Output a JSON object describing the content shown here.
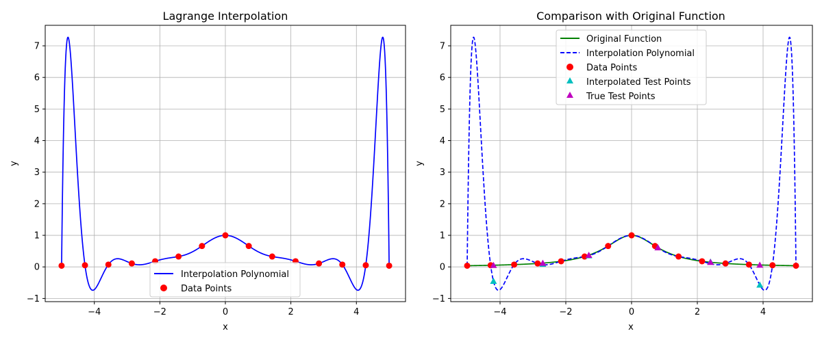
{
  "chart_data": [
    {
      "type": "line",
      "title": "Lagrange Interpolation",
      "xlabel": "x",
      "ylabel": "y",
      "xlim": [
        -5.5,
        5.5
      ],
      "ylim": [
        -1.1,
        7.65
      ],
      "xticks": [
        -4,
        -2,
        0,
        2,
        4
      ],
      "xtick_labels": [
        "−4",
        "−2",
        "0",
        "2",
        "4"
      ],
      "yticks": [
        -1,
        0,
        1,
        2,
        3,
        4,
        5,
        6,
        7
      ],
      "ytick_labels": [
        "−1",
        "0",
        "1",
        "2",
        "3",
        "4",
        "5",
        "6",
        "7"
      ],
      "grid": true,
      "legend_position": "lower center",
      "series": [
        {
          "name": "Interpolation Polynomial",
          "kind": "line",
          "color": "#0000ff",
          "style": "solid",
          "function": "lagrange_interpolant"
        },
        {
          "name": "Data Points",
          "kind": "points",
          "marker": "circle",
          "color": "#ff0000",
          "x": [
            -5.0,
            -4.286,
            -3.571,
            -2.857,
            -2.143,
            -1.429,
            -0.714,
            0.0,
            0.714,
            1.429,
            2.143,
            2.857,
            3.571,
            4.286,
            5.0
          ],
          "y": [
            0.038,
            0.052,
            0.073,
            0.109,
            0.179,
            0.329,
            0.662,
            1.0,
            0.662,
            0.329,
            0.179,
            0.109,
            0.073,
            0.052,
            0.038
          ]
        }
      ]
    },
    {
      "type": "line",
      "title": "Comparison with Original Function",
      "xlabel": "x",
      "ylabel": "y",
      "xlim": [
        -5.5,
        5.5
      ],
      "ylim": [
        -1.1,
        7.65
      ],
      "xticks": [
        -4,
        -2,
        0,
        2,
        4
      ],
      "xtick_labels": [
        "−4",
        "−2",
        "0",
        "2",
        "4"
      ],
      "yticks": [
        -1,
        0,
        1,
        2,
        3,
        4,
        5,
        6,
        7
      ],
      "ytick_labels": [
        "−1",
        "0",
        "1",
        "2",
        "3",
        "4",
        "5",
        "6",
        "7"
      ],
      "grid": true,
      "legend_position": "upper center",
      "series": [
        {
          "name": "Original Function",
          "kind": "line",
          "color": "#008000",
          "style": "solid",
          "function": "1/(1+x^2)"
        },
        {
          "name": "Interpolation Polynomial",
          "kind": "line",
          "color": "#0000ff",
          "style": "dashed",
          "function": "lagrange_interpolant"
        },
        {
          "name": "Data Points",
          "kind": "points",
          "marker": "circle",
          "color": "#ff0000",
          "x": [
            -5.0,
            -4.286,
            -3.571,
            -2.857,
            -2.143,
            -1.429,
            -0.714,
            0.0,
            0.714,
            1.429,
            2.143,
            2.857,
            3.571,
            4.286,
            5.0
          ],
          "y": [
            0.038,
            0.052,
            0.073,
            0.109,
            0.179,
            0.329,
            0.662,
            1.0,
            0.662,
            0.329,
            0.179,
            0.109,
            0.073,
            0.052,
            0.038
          ]
        },
        {
          "name": "Interpolated Test Points",
          "kind": "points",
          "marker": "triangle",
          "color": "#00bfbf",
          "x": [
            -4.2,
            -2.7,
            -1.3,
            0.8,
            2.4,
            3.9
          ],
          "y": [
            -0.45,
            0.09,
            0.36,
            0.61,
            0.16,
            -0.57
          ]
        },
        {
          "name": "True Test Points",
          "kind": "points",
          "marker": "triangle",
          "color": "#bf00bf",
          "x": [
            -4.2,
            -2.7,
            -1.3,
            0.8,
            2.4,
            3.9
          ],
          "y": [
            0.054,
            0.121,
            0.372,
            0.61,
            0.148,
            0.062
          ]
        }
      ]
    }
  ]
}
